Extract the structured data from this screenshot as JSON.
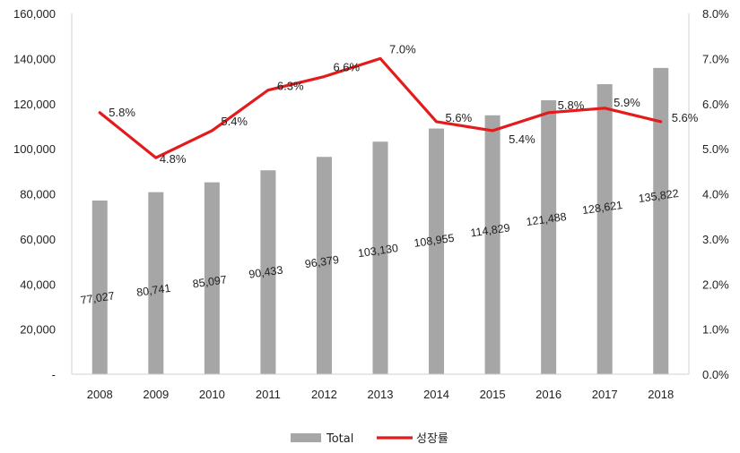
{
  "chart_data": {
    "type": "bar+line",
    "categories": [
      "2008",
      "2009",
      "2010",
      "2011",
      "2012",
      "2013",
      "2014",
      "2015",
      "2016",
      "2017",
      "2018"
    ],
    "series": [
      {
        "name": "Total",
        "type": "bar",
        "axis": "left",
        "color": "#a6a6a6",
        "values": [
          77027,
          80741,
          85097,
          90433,
          96379,
          103130,
          108955,
          114829,
          121488,
          128621,
          135822
        ],
        "labels": [
          "77,027",
          "80,741",
          "85,097",
          "90,433",
          "96,379",
          "103,130",
          "108,955",
          "114,829",
          "121,488",
          "128,621",
          "135,822"
        ]
      },
      {
        "name": "성장률",
        "type": "line",
        "axis": "right",
        "color": "#e31b1b",
        "values": [
          5.8,
          4.8,
          5.4,
          6.3,
          6.6,
          7.0,
          5.6,
          5.4,
          5.8,
          5.9,
          5.6
        ],
        "labels": [
          "5.8%",
          "4.8%",
          "5.4%",
          "6.3%",
          "6.6%",
          "7.0%",
          "5.6%",
          "5.4%",
          "5.8%",
          "5.9%",
          "5.6%"
        ]
      }
    ],
    "left_axis": {
      "ylim": [
        0,
        160000
      ],
      "ticks": [
        0,
        20000,
        40000,
        60000,
        80000,
        100000,
        120000,
        140000,
        160000
      ],
      "tick_labels": [
        "-",
        "20,000",
        "40,000",
        "60,000",
        "80,000",
        "100,000",
        "120,000",
        "140,000",
        "160,000"
      ]
    },
    "right_axis": {
      "ylim": [
        0,
        8
      ],
      "ticks": [
        0,
        1,
        2,
        3,
        4,
        5,
        6,
        7,
        8
      ],
      "tick_labels": [
        "0.0%",
        "1.0%",
        "2.0%",
        "3.0%",
        "4.0%",
        "5.0%",
        "6.0%",
        "7.0%",
        "8.0%"
      ]
    },
    "legend": {
      "position": "bottom",
      "entries": [
        "Total",
        "성장률"
      ]
    }
  }
}
